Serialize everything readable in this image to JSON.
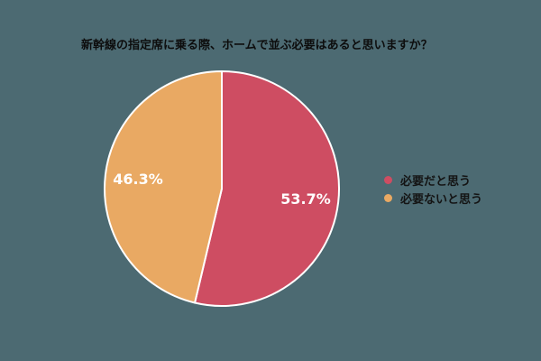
{
  "page": {
    "background_color": "#4C6A72"
  },
  "chart_data": {
    "type": "pie",
    "title": "新幹線の指定席に乗る際、ホームで並ぶ必要はあると思いますか？",
    "slices": [
      {
        "label": "必要だと思う",
        "value": 53.7,
        "display": "53.7%",
        "color": "#CE4D62"
      },
      {
        "label": "必要ないと思う",
        "value": 46.3,
        "display": "46.3%",
        "color": "#E9A963"
      }
    ],
    "start_angle_deg": 0,
    "direction": "clockwise",
    "legend_position": "right",
    "slice_label_color": "#FFFFFF",
    "slice_border_color": "#FFFFFF",
    "title_color": "#0d0d0d"
  }
}
